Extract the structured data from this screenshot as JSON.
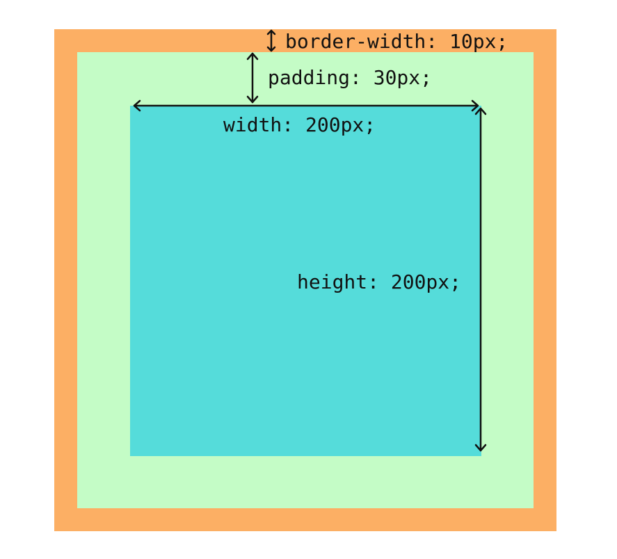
{
  "colors": {
    "border": "#FCAF64",
    "padding": "#C4FCC6",
    "content": "#55DCDA",
    "arrow": "#111111",
    "text": "#111111"
  },
  "labels": {
    "border_width": "border-width: 10px;",
    "padding": "padding: 30px;",
    "width": "width: 200px;",
    "height": "height: 200px;"
  }
}
